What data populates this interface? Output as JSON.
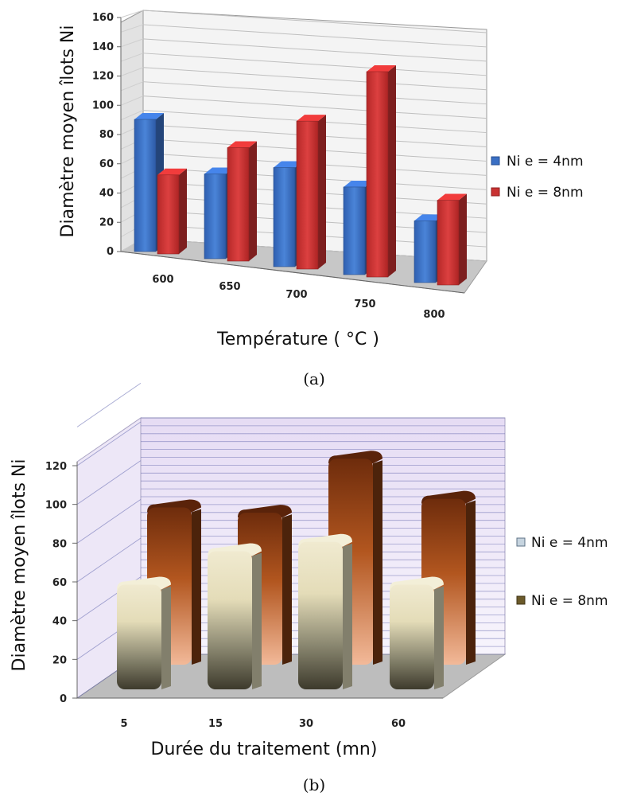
{
  "chart_data": [
    {
      "type": "bar",
      "title": "",
      "caption": "(a)",
      "xlabel": "Température  ( °C )",
      "ylabel": "Diamètre moyen îlots Ni",
      "categories": [
        "600",
        "650",
        "700",
        "750",
        "800"
      ],
      "yticks": [
        "0",
        "20",
        "40",
        "60",
        "80",
        "100",
        "120",
        "140",
        "160"
      ],
      "ylim": [
        0,
        160
      ],
      "grid": true,
      "legend_position": "right",
      "series": [
        {
          "name": "Ni e = 4nm",
          "color": "#3a6fc4",
          "values": [
            92,
            59,
            69,
            61,
            43
          ]
        },
        {
          "name": "Ni e = 8nm",
          "color": "#c93232",
          "values": [
            55,
            79,
            103,
            143,
            59
          ]
        }
      ]
    },
    {
      "type": "bar",
      "title": "",
      "caption": "(b)",
      "xlabel": "Durée du traitement (mn)",
      "ylabel": "Diamètre moyen îlots Ni",
      "categories": [
        "5",
        "15",
        "30",
        "60"
      ],
      "yticks": [
        "0",
        "20",
        "40",
        "60",
        "80",
        "100",
        "120"
      ],
      "ylim": [
        0,
        120
      ],
      "grid": true,
      "legend_position": "right",
      "series": [
        {
          "name": "Ni e = 4nm",
          "color": "#d9d3b4",
          "values": [
            58,
            76,
            81,
            58
          ]
        },
        {
          "name": "Ni e = 8nm",
          "color": "#8a3f14",
          "values": [
            92,
            89,
            120,
            97
          ]
        }
      ]
    }
  ]
}
